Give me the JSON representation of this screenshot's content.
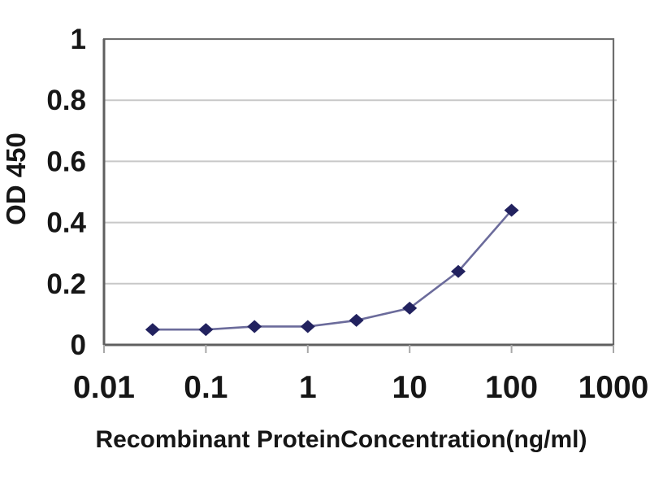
{
  "chart_data": {
    "type": "line",
    "title": "",
    "xlabel": "Recombinant ProteinConcentration(ng/ml)",
    "ylabel": "OD 450",
    "x_scale": "log",
    "xlim": [
      0.01,
      1000
    ],
    "ylim": [
      0,
      1
    ],
    "x_ticks": [
      0.01,
      0.1,
      1,
      10,
      100,
      1000
    ],
    "x_tick_labels": [
      "0.01",
      "0.1",
      "1",
      "10",
      "100",
      "1000"
    ],
    "y_ticks": [
      0,
      0.2,
      0.4,
      0.6,
      0.8,
      1
    ],
    "y_tick_labels": [
      "0",
      "0.2",
      "0.4",
      "0.6",
      "0.8",
      "1"
    ],
    "grid": true,
    "legend_position": "none",
    "series": [
      {
        "x": [
          0.03,
          0.1,
          0.3,
          1,
          3,
          10,
          30,
          100
        ],
        "y": [
          0.05,
          0.05,
          0.06,
          0.06,
          0.08,
          0.12,
          0.24,
          0.44
        ],
        "marker": "diamond"
      }
    ],
    "colors": {
      "line": "#6b6b9b",
      "marker": "#22225f",
      "grid": "#c8c8c8",
      "border": "#6e6e6e",
      "axis": "#5f5f5f",
      "tick": "#a8a8a8",
      "text": "#161616",
      "background": "#ffffff"
    }
  }
}
